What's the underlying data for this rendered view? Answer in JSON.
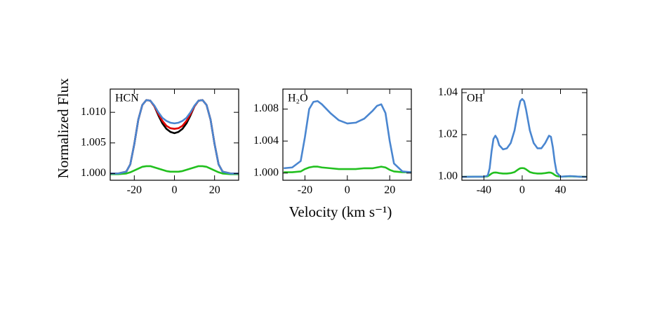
{
  "chart_data": [
    {
      "type": "line",
      "annotation": "HCN",
      "ylabel": "Normalized Flux",
      "x": [
        -32,
        -28,
        -24,
        -22,
        -20,
        -18,
        -16,
        -14,
        -12,
        -10,
        -8,
        -6,
        -4,
        -2,
        0,
        2,
        4,
        6,
        8,
        10,
        12,
        14,
        16,
        18,
        20,
        22,
        24,
        28,
        32
      ],
      "series": [
        {
          "color": "#000000",
          "values": [
            1.0,
            1.0,
            1.0003,
            1.0015,
            1.0048,
            1.0088,
            1.0112,
            1.012,
            1.0119,
            1.011,
            1.0095,
            1.0082,
            1.0073,
            1.0068,
            1.0066,
            1.0068,
            1.0073,
            1.0082,
            1.0095,
            1.011,
            1.0119,
            1.012,
            1.0112,
            1.0088,
            1.0048,
            1.0015,
            1.0003,
            1.0,
            1.0
          ]
        },
        {
          "color": "#e00000",
          "values": [
            1.0,
            1.0,
            1.0003,
            1.0015,
            1.0048,
            1.0088,
            1.0112,
            1.012,
            1.0119,
            1.011,
            1.0097,
            1.0086,
            1.0078,
            1.0074,
            1.0073,
            1.0074,
            1.0078,
            1.0086,
            1.0097,
            1.011,
            1.0119,
            1.012,
            1.0112,
            1.0088,
            1.0048,
            1.0015,
            1.0003,
            1.0,
            1.0
          ]
        },
        {
          "color": "#22c01f",
          "values": [
            0.9999,
            0.9999,
            1.0,
            1.0002,
            1.0005,
            1.0008,
            1.0011,
            1.0012,
            1.0012,
            1.001,
            1.0008,
            1.0006,
            1.0004,
            1.0003,
            1.0003,
            1.0003,
            1.0004,
            1.0006,
            1.0008,
            1.001,
            1.0012,
            1.0012,
            1.0011,
            1.0008,
            1.0005,
            1.0002,
            1.0,
            0.9999,
            0.9999
          ]
        },
        {
          "color": "#4a86d0",
          "values": [
            1.0,
            1.0,
            1.0003,
            1.0015,
            1.0048,
            1.0088,
            1.0112,
            1.012,
            1.0119,
            1.0111,
            1.01,
            1.0091,
            1.0086,
            1.0083,
            1.0082,
            1.0083,
            1.0086,
            1.0091,
            1.01,
            1.0111,
            1.0119,
            1.012,
            1.0112,
            1.0088,
            1.0048,
            1.0015,
            1.0003,
            1.0,
            1.0
          ]
        }
      ],
      "xlim": [
        -32,
        32
      ],
      "xticks": [
        -20,
        0,
        20
      ],
      "ylim": [
        0.9989,
        1.0138
      ],
      "yticks": [
        {
          "value": 1,
          "label": "1.000"
        },
        {
          "value": 1.005,
          "label": "1.005"
        },
        {
          "value": 1.01,
          "label": "1.010"
        }
      ]
    },
    {
      "type": "line",
      "annotation": "H₂O",
      "xlabel": "Velocity (km s⁻¹)",
      "x": [
        -30,
        -26,
        -22,
        -20,
        -18,
        -16,
        -14,
        -12,
        -8,
        -4,
        0,
        4,
        8,
        12,
        14,
        16,
        18,
        20,
        22,
        26,
        30
      ],
      "series": [
        {
          "color": "#22c01f",
          "values": [
            1.0001,
            1.0001,
            1.0002,
            1.0005,
            1.0007,
            1.0008,
            1.0008,
            1.0007,
            1.0006,
            1.0005,
            1.0005,
            1.0005,
            1.0006,
            1.0006,
            1.0007,
            1.0008,
            1.0007,
            1.0004,
            1.0002,
            1.0001,
            1.0001
          ]
        },
        {
          "color": "#4a86d0",
          "values": [
            1.0006,
            1.0007,
            1.0015,
            1.0045,
            1.008,
            1.0089,
            1.009,
            1.0086,
            1.0075,
            1.0066,
            1.0062,
            1.0063,
            1.0068,
            1.0078,
            1.0084,
            1.0086,
            1.0075,
            1.004,
            1.0012,
            1.0002,
            1.0001
          ]
        }
      ],
      "xlim": [
        -30.4,
        30.2
      ],
      "xticks": [
        -20,
        0,
        20
      ],
      "ylim": [
        0.9991,
        1.0105
      ],
      "yticks": [
        {
          "value": 1,
          "label": "1.000"
        },
        {
          "value": 1.004,
          "label": "1.004"
        },
        {
          "value": 1.008,
          "label": "1.008"
        }
      ]
    },
    {
      "type": "line",
      "annotation": "OH",
      "x": [
        -63,
        -50,
        -40,
        -36,
        -34,
        -32,
        -30,
        -28,
        -26,
        -24,
        -20,
        -16,
        -12,
        -8,
        -4,
        -2,
        0,
        2,
        4,
        8,
        12,
        16,
        20,
        24,
        28,
        30,
        32,
        34,
        36,
        40,
        50,
        60,
        67
      ],
      "series": [
        {
          "color": "#22c01f",
          "values": [
            0.9999,
            1.0,
            1.0,
            1.0002,
            1.0008,
            1.0015,
            1.0019,
            1.002,
            1.0019,
            1.0017,
            1.0015,
            1.0015,
            1.0017,
            1.0022,
            1.0035,
            1.004,
            1.0041,
            1.004,
            1.0035,
            1.0022,
            1.0017,
            1.0015,
            1.0015,
            1.0017,
            1.002,
            1.0019,
            1.0015,
            1.0008,
            1.0003,
            1.0,
            1.0002,
            1.0,
            0.9999
          ]
        },
        {
          "color": "#4a86d0",
          "values": [
            0.9999,
            1.0,
            1.0,
            1.0005,
            1.004,
            1.012,
            1.018,
            1.0195,
            1.018,
            1.015,
            1.013,
            1.0135,
            1.016,
            1.022,
            1.032,
            1.036,
            1.037,
            1.036,
            1.032,
            1.022,
            1.016,
            1.0135,
            1.0135,
            1.016,
            1.0195,
            1.019,
            1.014,
            1.007,
            1.002,
            1.0,
            1.0003,
            1.0,
            0.9999
          ]
        }
      ],
      "xlim": [
        -63,
        67.5
      ],
      "xticks": [
        -40,
        0,
        40
      ],
      "ylim": [
        0.9983,
        1.0417
      ],
      "yticks": [
        {
          "value": 1,
          "label": "1.00"
        },
        {
          "value": 1.02,
          "label": "1.02"
        },
        {
          "value": 1.04,
          "label": "1.04"
        }
      ]
    }
  ]
}
